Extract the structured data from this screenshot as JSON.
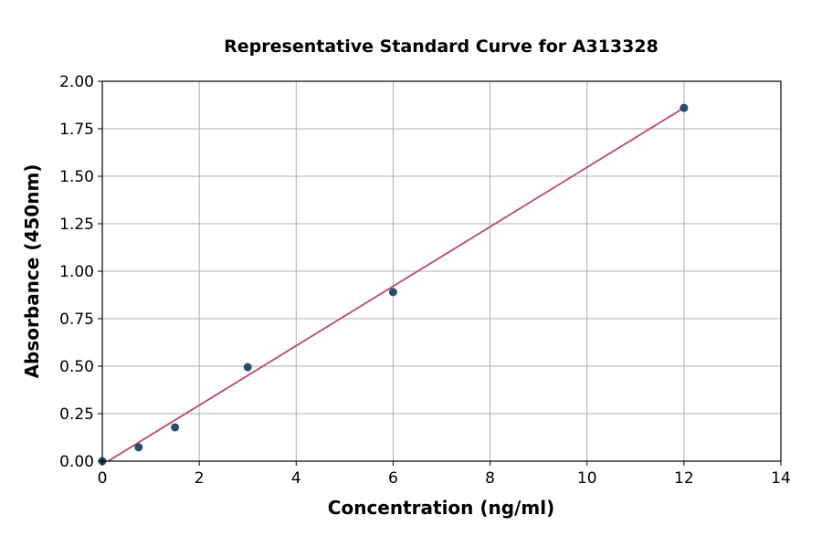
{
  "chart_data": {
    "type": "scatter",
    "title": "Representative Standard Curve for A313328",
    "xlabel": "Concentration (ng/ml)",
    "ylabel": "Absorbance (450nm)",
    "xlim": [
      0,
      14
    ],
    "ylim": [
      0,
      2.0
    ],
    "xticks": [
      "0",
      "2",
      "4",
      "6",
      "8",
      "10",
      "12",
      "14"
    ],
    "yticks": [
      "0.00",
      "0.25",
      "0.50",
      "0.75",
      "1.00",
      "1.25",
      "1.50",
      "1.75",
      "2.00"
    ],
    "grid": true,
    "points": {
      "x": [
        0,
        0.75,
        1.5,
        3,
        6,
        12
      ],
      "y": [
        0.0,
        0.073,
        0.178,
        0.495,
        0.89,
        1.86
      ]
    },
    "fit_line": {
      "x": [
        0.12,
        12
      ],
      "y": [
        0.0,
        1.86
      ]
    },
    "colors": {
      "points": "#2c4a6b",
      "line": "#b94a6c",
      "grid": "#b0b0b0"
    }
  }
}
